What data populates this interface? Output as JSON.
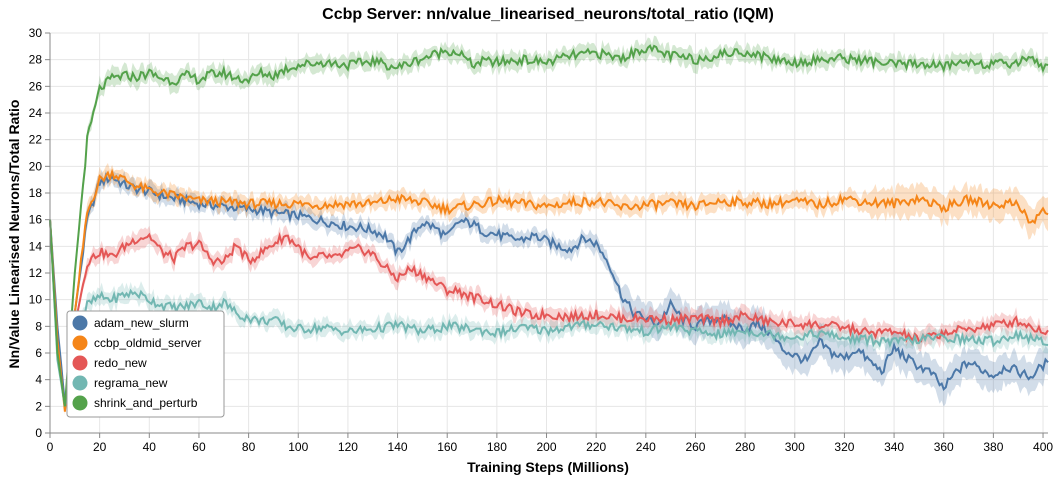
{
  "chart_data": {
    "type": "line",
    "title": "Ccbp Server: nn/value_linearised_neurons/total_ratio (IQM)",
    "xlabel": "Training Steps (Millions)",
    "ylabel": "Nn/Value Linearised Neurons/Total Ratio",
    "xlim": [
      0,
      402
    ],
    "ylim": [
      0,
      30
    ],
    "xticks": [
      0,
      20,
      40,
      60,
      80,
      100,
      120,
      140,
      160,
      180,
      200,
      220,
      240,
      260,
      280,
      300,
      320,
      340,
      360,
      380,
      400
    ],
    "yticks": [
      0,
      2,
      4,
      6,
      8,
      10,
      12,
      14,
      16,
      18,
      20,
      22,
      24,
      26,
      28,
      30
    ],
    "grid": true,
    "legend_position": "bottom-left",
    "series": [
      {
        "name": "adam_new_slurm",
        "color": "#4c78a8",
        "x": [
          0,
          3,
          6,
          10,
          15,
          20,
          25,
          30,
          35,
          40,
          45,
          50,
          55,
          60,
          65,
          70,
          75,
          80,
          85,
          90,
          95,
          100,
          105,
          110,
          115,
          120,
          125,
          130,
          135,
          140,
          145,
          150,
          155,
          160,
          165,
          170,
          175,
          180,
          185,
          190,
          195,
          200,
          205,
          210,
          215,
          220,
          225,
          230,
          235,
          240,
          245,
          250,
          255,
          260,
          265,
          270,
          275,
          280,
          285,
          290,
          295,
          300,
          305,
          310,
          315,
          320,
          325,
          330,
          335,
          340,
          345,
          350,
          355,
          360,
          365,
          370,
          375,
          380,
          385,
          390,
          395,
          400,
          402
        ],
        "values": [
          16,
          8,
          2.2,
          9,
          16,
          18.8,
          19.2,
          18.6,
          18.3,
          18.1,
          17.8,
          17.6,
          17.4,
          17.2,
          17.1,
          17.0,
          16.9,
          16.8,
          16.7,
          16.5,
          16.4,
          16.3,
          16.1,
          15.9,
          15.7,
          15.5,
          15.4,
          15.2,
          14.8,
          13.5,
          14.6,
          15.8,
          15.4,
          14.7,
          15.9,
          15.7,
          15.1,
          14.9,
          14.6,
          14.5,
          14.8,
          14.4,
          14.0,
          13.8,
          14.6,
          14.2,
          12.8,
          10.4,
          9.0,
          8.6,
          8.2,
          9.6,
          8.5,
          8.0,
          8.4,
          8.7,
          8.1,
          7.8,
          8.2,
          7.5,
          6.3,
          5.8,
          5.4,
          6.8,
          6.0,
          5.6,
          6.3,
          5.4,
          4.6,
          6.4,
          5.6,
          5.0,
          4.5,
          3.3,
          4.6,
          5.3,
          4.8,
          4.3,
          5.0,
          4.6,
          4.2,
          5.1,
          5.3
        ]
      },
      {
        "name": "ccbp_oldmid_server",
        "color": "#f58518",
        "x": [
          0,
          3,
          6,
          10,
          15,
          20,
          25,
          30,
          35,
          40,
          45,
          50,
          55,
          60,
          65,
          70,
          75,
          80,
          90,
          100,
          110,
          120,
          130,
          140,
          150,
          160,
          170,
          180,
          190,
          200,
          210,
          220,
          230,
          240,
          250,
          260,
          270,
          280,
          290,
          300,
          310,
          320,
          330,
          340,
          350,
          360,
          370,
          380,
          390,
          395,
          400,
          402
        ],
        "values": [
          16,
          7,
          1.6,
          9,
          16.5,
          19.0,
          19.5,
          19.0,
          18.5,
          18.2,
          18.0,
          17.8,
          17.6,
          17.4,
          17.4,
          17.3,
          17.3,
          17.2,
          17.2,
          17.2,
          17.1,
          17.2,
          17.2,
          17.6,
          17.3,
          16.8,
          17.1,
          17.4,
          17.2,
          17.0,
          17.3,
          17.4,
          16.9,
          17.1,
          17.2,
          17.0,
          17.4,
          17.3,
          17.2,
          17.4,
          17.1,
          17.6,
          17.3,
          17.2,
          17.6,
          16.9,
          17.5,
          17.1,
          17.3,
          15.6,
          16.8,
          16.4
        ]
      },
      {
        "name": "redo_new",
        "color": "#e45756",
        "x": [
          0,
          3,
          6,
          10,
          15,
          20,
          25,
          30,
          35,
          40,
          45,
          50,
          55,
          60,
          65,
          70,
          75,
          80,
          85,
          90,
          95,
          100,
          105,
          110,
          115,
          120,
          125,
          130,
          135,
          140,
          145,
          150,
          155,
          160,
          165,
          170,
          175,
          180,
          185,
          190,
          195,
          200,
          210,
          220,
          230,
          240,
          250,
          260,
          270,
          280,
          290,
          300,
          310,
          320,
          330,
          340,
          350,
          360,
          370,
          380,
          390,
          400,
          402
        ],
        "values": [
          16,
          6,
          2.0,
          8,
          12.8,
          13.6,
          13.2,
          14.0,
          14.6,
          14.8,
          13.6,
          13.1,
          14.0,
          14.2,
          13.0,
          12.8,
          14.1,
          12.9,
          13.5,
          14.2,
          14.8,
          14.0,
          12.9,
          13.3,
          13.1,
          13.6,
          13.8,
          13.4,
          12.4,
          11.6,
          12.3,
          11.9,
          11.3,
          10.7,
          10.6,
          10.2,
          10.0,
          9.6,
          9.3,
          9.0,
          8.8,
          8.9,
          8.7,
          8.9,
          8.6,
          8.6,
          8.5,
          8.6,
          8.4,
          8.8,
          8.3,
          8.2,
          8.1,
          7.9,
          7.5,
          7.6,
          7.0,
          7.5,
          7.8,
          8.1,
          8.4,
          7.6,
          7.7
        ]
      },
      {
        "name": "regrama_new",
        "color": "#72b7b2",
        "x": [
          0,
          3,
          6,
          10,
          15,
          20,
          25,
          30,
          35,
          40,
          45,
          50,
          55,
          60,
          65,
          70,
          75,
          80,
          85,
          90,
          95,
          100,
          110,
          120,
          130,
          140,
          150,
          160,
          170,
          180,
          190,
          200,
          210,
          220,
          230,
          240,
          250,
          260,
          270,
          280,
          290,
          300,
          310,
          320,
          330,
          340,
          350,
          360,
          370,
          380,
          390,
          400,
          402
        ],
        "values": [
          16,
          5.5,
          2.0,
          7,
          9.6,
          10.2,
          10.0,
          10.4,
          10.5,
          10.0,
          9.6,
          9.4,
          9.5,
          9.8,
          9.4,
          9.8,
          9.0,
          8.6,
          8.4,
          8.5,
          8.0,
          7.8,
          7.9,
          7.6,
          7.8,
          8.1,
          7.6,
          8.0,
          7.8,
          7.5,
          7.9,
          7.7,
          8.0,
          8.2,
          7.9,
          7.6,
          8.0,
          7.6,
          7.4,
          7.7,
          7.4,
          7.2,
          7.5,
          7.1,
          7.0,
          6.8,
          7.0,
          7.2,
          7.0,
          6.9,
          7.4,
          6.8,
          6.6
        ]
      },
      {
        "name": "shrink_and_perturb",
        "color": "#54a24b",
        "x": [
          0,
          3,
          6,
          10,
          15,
          20,
          25,
          30,
          35,
          40,
          45,
          50,
          55,
          60,
          65,
          70,
          75,
          80,
          85,
          90,
          95,
          100,
          110,
          120,
          130,
          140,
          150,
          160,
          165,
          170,
          175,
          180,
          190,
          200,
          210,
          220,
          230,
          240,
          250,
          260,
          270,
          280,
          290,
          300,
          310,
          320,
          330,
          340,
          350,
          360,
          370,
          380,
          390,
          395,
          400,
          402
        ],
        "values": [
          16,
          6,
          2.0,
          12,
          22,
          25.8,
          26.6,
          26.8,
          26.7,
          27.0,
          26.6,
          26.4,
          26.8,
          26.5,
          26.9,
          27.0,
          26.6,
          26.5,
          27.0,
          26.8,
          27.3,
          27.6,
          27.8,
          27.6,
          27.9,
          27.4,
          28.1,
          28.7,
          28.5,
          27.6,
          27.9,
          27.8,
          28.0,
          27.8,
          28.3,
          28.5,
          28.1,
          28.9,
          28.3,
          28.0,
          28.4,
          28.6,
          28.1,
          27.8,
          28.0,
          28.1,
          27.9,
          27.6,
          27.7,
          27.5,
          27.9,
          27.6,
          27.8,
          28.3,
          27.4,
          27.6
        ]
      }
    ]
  }
}
